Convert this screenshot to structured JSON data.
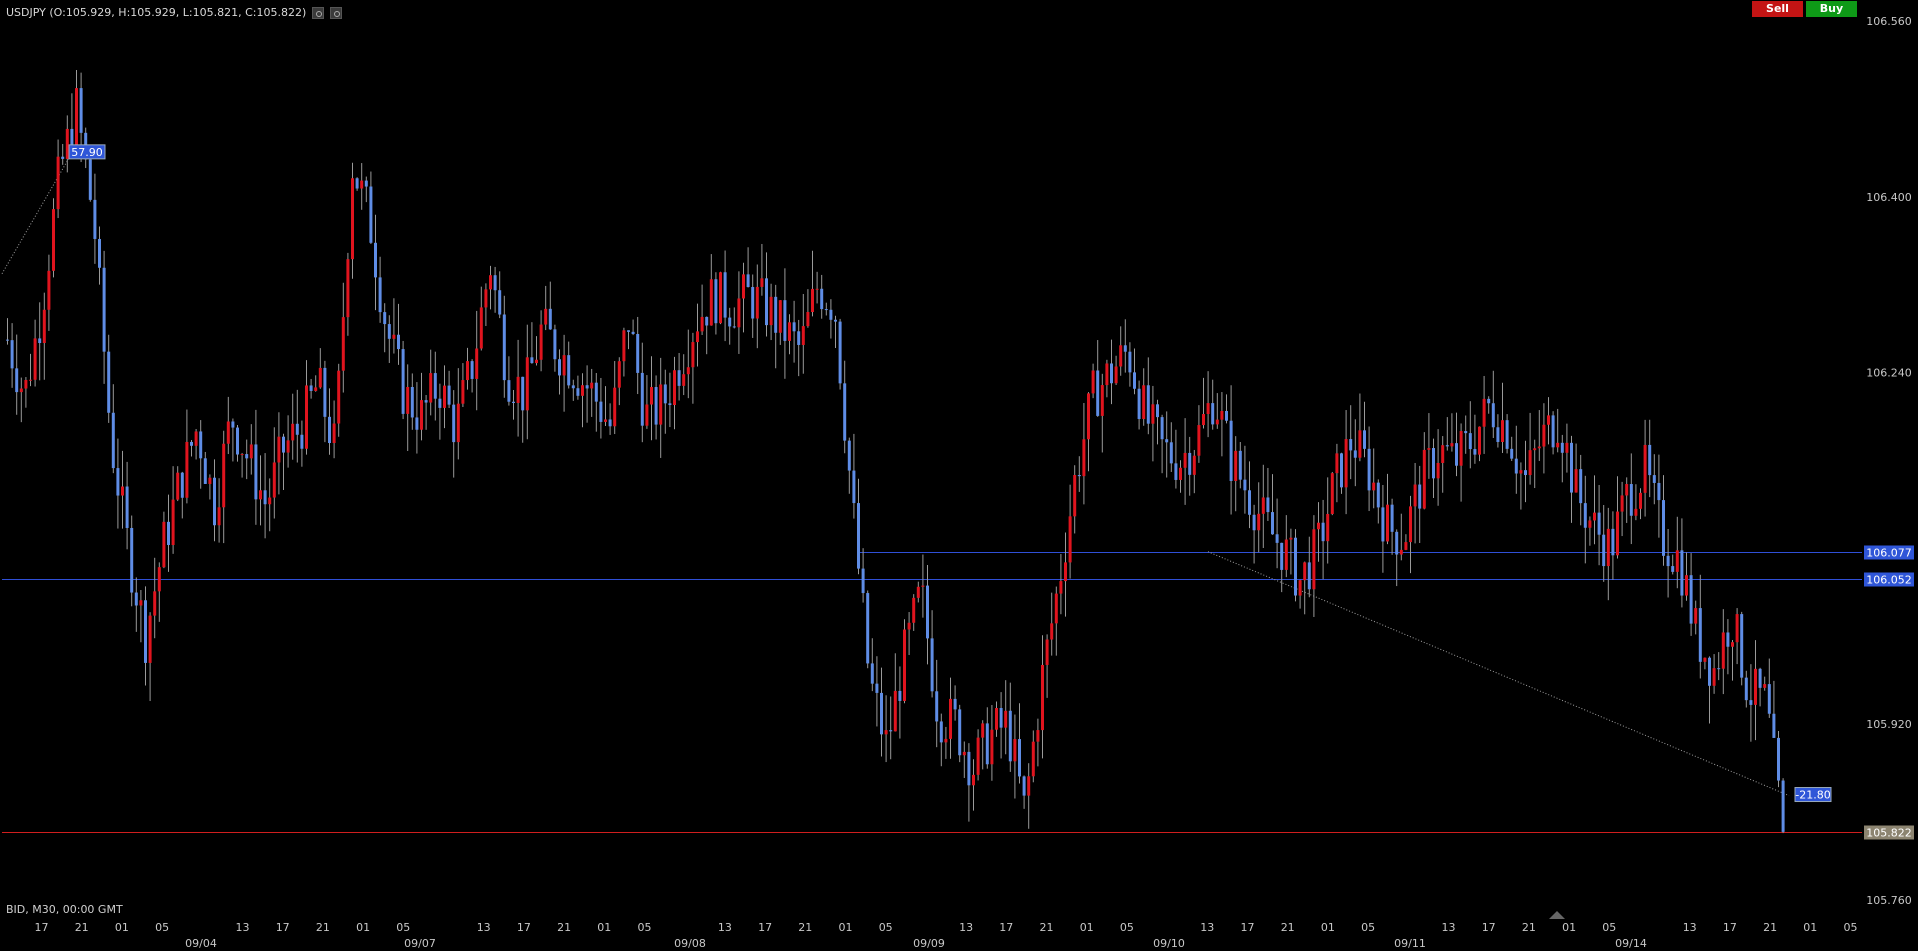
{
  "header": {
    "symbol_ohlc": "USDJPY (O:105.929, H:105.929, L:105.821, C:105.822)",
    "icons": [
      "settings-icon",
      "close-icon"
    ]
  },
  "trade_buttons": {
    "sell_label": "Sell",
    "buy_label": "Buy"
  },
  "footer": {
    "bid_info": "BID, M30, 00:00 GMT"
  },
  "colors": {
    "background": "#000000",
    "up_candle": "#e0141e",
    "down_candle": "#5f8de6",
    "hline_blue": "#2f4fd6",
    "hline_red": "#d01e1e",
    "label_blue_bg": "#2f56d8",
    "last_price_bg": "#8c8470",
    "axis_text": "#c8c8c8"
  },
  "chart_data": {
    "type": "candlestick",
    "symbol": "USDJPY",
    "timeframe": "M30",
    "y_ticks": [
      106.56,
      106.4,
      106.24,
      105.92,
      105.76
    ],
    "ylim": [
      105.76,
      106.56
    ],
    "x_time_ticks": [
      "17",
      "21",
      "01",
      "05",
      "13",
      "17",
      "21",
      "01",
      "05",
      "13",
      "17",
      "21",
      "01",
      "05",
      "13",
      "17",
      "21",
      "01",
      "05",
      "13",
      "17",
      "21",
      "01",
      "05",
      "13",
      "17",
      "21",
      "01",
      "05",
      "13",
      "17",
      "21",
      "01",
      "05",
      "13",
      "17",
      "21",
      "01",
      "05"
    ],
    "x_date_ticks": [
      "09/04",
      "09/07",
      "09/08",
      "09/09",
      "09/10",
      "09/11",
      "09/14"
    ],
    "price_path": [
      106.27,
      106.22,
      106.3,
      106.42,
      106.48,
      106.38,
      106.18,
      106.08,
      106.0,
      106.08,
      106.14,
      106.19,
      106.12,
      106.2,
      106.16,
      106.12,
      106.17,
      106.19,
      106.23,
      106.17,
      106.43,
      106.38,
      106.28,
      106.22,
      106.2,
      106.23,
      106.19,
      106.25,
      106.34,
      106.24,
      106.22,
      106.28,
      106.26,
      106.24,
      106.22,
      106.19,
      106.29,
      106.2,
      106.21,
      106.25,
      106.29,
      106.31,
      106.3,
      106.31,
      106.3,
      106.28,
      106.26,
      106.32,
      106.3,
      106.12,
      105.96,
      105.9,
      105.98,
      106.04,
      105.93,
      105.92,
      105.88,
      105.91,
      105.92,
      105.84,
      105.96,
      106.05,
      106.15,
      106.22,
      106.24,
      106.26,
      106.2,
      106.17,
      106.16,
      106.18,
      106.22,
      106.16,
      106.13,
      106.1,
      106.08,
      106.05,
      106.08,
      106.14,
      106.18,
      106.15,
      106.1,
      106.09,
      106.14,
      106.17,
      106.16,
      106.18,
      106.21,
      106.19,
      106.14,
      106.18,
      106.2,
      106.13,
      106.1,
      106.08,
      106.13,
      106.15,
      106.09,
      106.07,
      106.0,
      105.97,
      106.02,
      105.95,
      105.94,
      105.82
    ],
    "horizontal_lines": [
      {
        "price": 106.077,
        "label": "106.077",
        "color": "blue"
      },
      {
        "price": 106.052,
        "label": "106.052",
        "color": "blue"
      },
      {
        "price": 105.822,
        "label": "105.822",
        "color": "red",
        "last_price": true
      }
    ],
    "trendline_labels": [
      "57.90",
      "-21.80"
    ]
  }
}
